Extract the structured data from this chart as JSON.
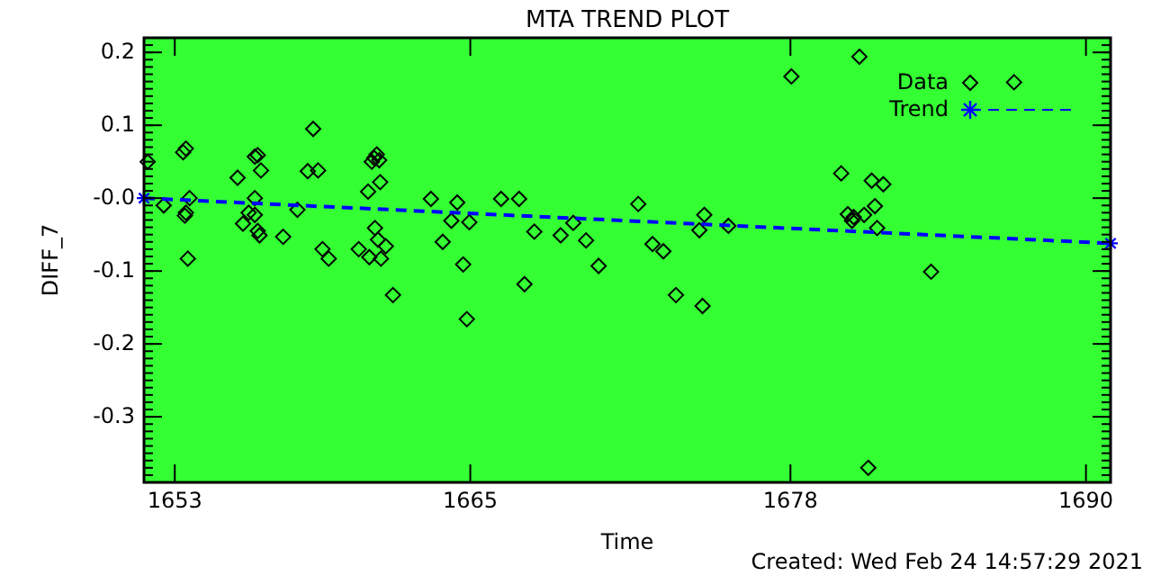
{
  "chart_data": {
    "type": "scatter",
    "title": "MTA TREND PLOT",
    "xlabel": "Time",
    "ylabel": "DIFF_7",
    "annotations": [
      "Created: Wed Feb 24 14:57:29 2021"
    ],
    "xlim": [
      1651.75,
      1691
    ],
    "xticks": [
      1653,
      1665,
      1678,
      1690
    ],
    "ylim": [
      -0.39,
      0.22
    ],
    "yticks": [
      0.2,
      0.1,
      {
        "value": 0,
        "label": "-0.0"
      },
      -0.1,
      -0.2,
      -0.3
    ],
    "grid": false,
    "legend": "top right",
    "series": [
      {
        "name": "Data",
        "marker": "diamond",
        "color": "#000000",
        "x": [
          1651.9,
          1652.55,
          1653.34,
          1653.45,
          1653.41,
          1653.45,
          1653.53,
          1653.6,
          1655.55,
          1656.25,
          1656.37,
          1656.5,
          1656.25,
          1656.0,
          1656.25,
          1655.77,
          1656.37,
          1656.44,
          1657.4,
          1658.62,
          1658.4,
          1658.82,
          1657.98,
          1659.0,
          1659.25,
          1661.1,
          1661.0,
          1661.2,
          1661.3,
          1661.34,
          1660.85,
          1661.13,
          1661.25,
          1661.57,
          1660.47,
          1660.9,
          1661.37,
          1661.86,
          1663.4,
          1664.47,
          1664.23,
          1664.96,
          1663.88,
          1664.71,
          1664.86,
          1666.25,
          1666.98,
          1667.6,
          1667.2,
          1668.67,
          1669.18,
          1669.7,
          1670.21,
          1671.82,
          1672.4,
          1672.84,
          1673.35,
          1674.5,
          1674.3,
          1674.43,
          1675.48,
          1678.04,
          1680.8,
          1687.08,
          1680.06,
          1681.3,
          1681.77,
          1681.43,
          1680.33,
          1680.57,
          1680.5,
          1680.99,
          1681.52,
          1683.71,
          1681.16
        ],
        "values": [
          0.05,
          -0.01,
          0.063,
          0.068,
          -0.024,
          -0.02,
          -0.083,
          0.0,
          0.028,
          0.057,
          0.059,
          0.038,
          0.0,
          -0.02,
          -0.023,
          -0.035,
          -0.045,
          -0.051,
          -0.053,
          0.095,
          0.037,
          0.038,
          -0.016,
          -0.07,
          -0.083,
          0.055,
          0.05,
          0.06,
          0.052,
          0.022,
          0.009,
          -0.041,
          -0.057,
          -0.066,
          -0.07,
          -0.081,
          -0.083,
          -0.133,
          -0.001,
          -0.006,
          -0.031,
          -0.033,
          -0.06,
          -0.091,
          -0.166,
          -0.001,
          -0.001,
          -0.046,
          -0.118,
          -0.051,
          -0.034,
          -0.058,
          -0.093,
          -0.008,
          -0.063,
          -0.073,
          -0.133,
          -0.023,
          -0.044,
          -0.148,
          -0.038,
          0.167,
          0.194,
          0.159,
          0.034,
          0.024,
          0.019,
          -0.011,
          -0.022,
          -0.026,
          -0.031,
          -0.023,
          -0.041,
          -0.101,
          -0.37
        ]
      },
      {
        "name": "Trend",
        "type": "line",
        "marker": "cross",
        "line_style": "dashed",
        "color": "#0000ff",
        "x": [
          1651.75,
          1691
        ],
        "values": [
          0,
          -0.062
        ]
      }
    ]
  }
}
